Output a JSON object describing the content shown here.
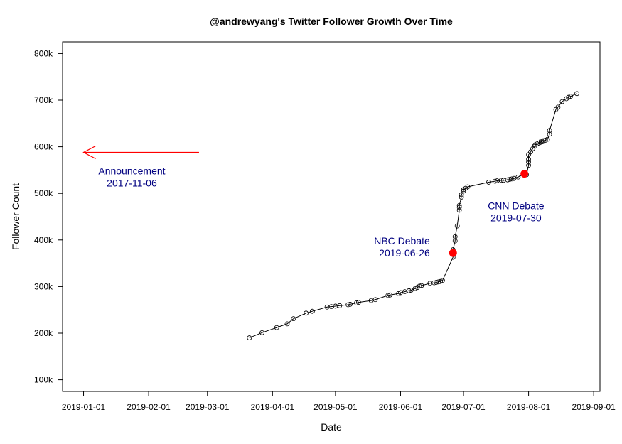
{
  "chart_data": {
    "type": "line",
    "title": "@andrewyang's Twitter Follower Growth Over Time",
    "xlabel": "Date",
    "ylabel": "Follower Count",
    "xlim": [
      "2018-12-22",
      "2019-09-04"
    ],
    "ylim": [
      75000,
      825000
    ],
    "x_ticks": [
      "2019-01-01",
      "2019-02-01",
      "2019-03-01",
      "2019-04-01",
      "2019-05-01",
      "2019-06-01",
      "2019-07-01",
      "2019-08-01",
      "2019-09-01"
    ],
    "y_ticks": [
      100000,
      200000,
      300000,
      400000,
      500000,
      600000,
      700000,
      800000
    ],
    "y_tick_labels": [
      "100k",
      "200k",
      "300k",
      "400k",
      "500k",
      "600k",
      "700k",
      "800k"
    ],
    "grid": false,
    "series": [
      {
        "marker": "open-circle",
        "color": "#000000",
        "points": [
          {
            "x": "2019-03-21",
            "y": 190000
          },
          {
            "x": "2019-03-27",
            "y": 201000
          },
          {
            "x": "2019-04-03",
            "y": 212000
          },
          {
            "x": "2019-04-08",
            "y": 220000
          },
          {
            "x": "2019-04-11",
            "y": 231000
          },
          {
            "x": "2019-04-17",
            "y": 243000
          },
          {
            "x": "2019-04-20",
            "y": 247000
          },
          {
            "x": "2019-04-27",
            "y": 256000
          },
          {
            "x": "2019-04-29",
            "y": 257000
          },
          {
            "x": "2019-05-01",
            "y": 258000
          },
          {
            "x": "2019-05-03",
            "y": 259000
          },
          {
            "x": "2019-05-07",
            "y": 261000
          },
          {
            "x": "2019-05-08",
            "y": 262000
          },
          {
            "x": "2019-05-11",
            "y": 265000
          },
          {
            "x": "2019-05-12",
            "y": 266000
          },
          {
            "x": "2019-05-18",
            "y": 270000
          },
          {
            "x": "2019-05-20",
            "y": 272000
          },
          {
            "x": "2019-05-26",
            "y": 281000
          },
          {
            "x": "2019-05-27",
            "y": 282000
          },
          {
            "x": "2019-05-31",
            "y": 285000
          },
          {
            "x": "2019-06-01",
            "y": 287000
          },
          {
            "x": "2019-06-03",
            "y": 289000
          },
          {
            "x": "2019-06-05",
            "y": 291000
          },
          {
            "x": "2019-06-06",
            "y": 292000
          },
          {
            "x": "2019-06-08",
            "y": 296000
          },
          {
            "x": "2019-06-09",
            "y": 298000
          },
          {
            "x": "2019-06-10",
            "y": 301000
          },
          {
            "x": "2019-06-11",
            "y": 302000
          },
          {
            "x": "2019-06-15",
            "y": 307000
          },
          {
            "x": "2019-06-17",
            "y": 308000
          },
          {
            "x": "2019-06-18",
            "y": 309000
          },
          {
            "x": "2019-06-19",
            "y": 310000
          },
          {
            "x": "2019-06-20",
            "y": 311000
          },
          {
            "x": "2019-06-21",
            "y": 313000
          },
          {
            "x": "2019-06-26",
            "y": 363000
          },
          {
            "x": "2019-06-26",
            "y": 372000
          },
          {
            "x": "2019-06-26",
            "y": 379000
          },
          {
            "x": "2019-06-27",
            "y": 398000
          },
          {
            "x": "2019-06-27",
            "y": 407000
          },
          {
            "x": "2019-06-28",
            "y": 430000
          },
          {
            "x": "2019-06-29",
            "y": 464000
          },
          {
            "x": "2019-06-29",
            "y": 470000
          },
          {
            "x": "2019-06-29",
            "y": 474000
          },
          {
            "x": "2019-06-30",
            "y": 492000
          },
          {
            "x": "2019-06-30",
            "y": 497000
          },
          {
            "x": "2019-07-01",
            "y": 505000
          },
          {
            "x": "2019-07-01",
            "y": 508000
          },
          {
            "x": "2019-07-02",
            "y": 511000
          },
          {
            "x": "2019-07-03",
            "y": 514000
          },
          {
            "x": "2019-07-13",
            "y": 524000
          },
          {
            "x": "2019-07-16",
            "y": 526000
          },
          {
            "x": "2019-07-17",
            "y": 527000
          },
          {
            "x": "2019-07-19",
            "y": 528000
          },
          {
            "x": "2019-07-20",
            "y": 528000
          },
          {
            "x": "2019-07-22",
            "y": 529000
          },
          {
            "x": "2019-07-23",
            "y": 530000
          },
          {
            "x": "2019-07-24",
            "y": 531000
          },
          {
            "x": "2019-07-25",
            "y": 532000
          },
          {
            "x": "2019-07-27",
            "y": 535000
          },
          {
            "x": "2019-07-30",
            "y": 542000
          },
          {
            "x": "2019-07-31",
            "y": 540000
          },
          {
            "x": "2019-08-01",
            "y": 560000
          },
          {
            "x": "2019-08-01",
            "y": 567000
          },
          {
            "x": "2019-08-01",
            "y": 573000
          },
          {
            "x": "2019-08-01",
            "y": 583000
          },
          {
            "x": "2019-08-02",
            "y": 589000
          },
          {
            "x": "2019-08-03",
            "y": 596000
          },
          {
            "x": "2019-08-04",
            "y": 601000
          },
          {
            "x": "2019-08-04",
            "y": 604000
          },
          {
            "x": "2019-08-05",
            "y": 606000
          },
          {
            "x": "2019-08-06",
            "y": 608000
          },
          {
            "x": "2019-08-07",
            "y": 610000
          },
          {
            "x": "2019-08-07",
            "y": 612000
          },
          {
            "x": "2019-08-08",
            "y": 613000
          },
          {
            "x": "2019-08-09",
            "y": 614000
          },
          {
            "x": "2019-08-10",
            "y": 616000
          },
          {
            "x": "2019-08-11",
            "y": 627000
          },
          {
            "x": "2019-08-11",
            "y": 635000
          },
          {
            "x": "2019-08-14",
            "y": 680000
          },
          {
            "x": "2019-08-15",
            "y": 685000
          },
          {
            "x": "2019-08-17",
            "y": 697000
          },
          {
            "x": "2019-08-19",
            "y": 703000
          },
          {
            "x": "2019-08-20",
            "y": 706000
          },
          {
            "x": "2019-08-21",
            "y": 708000
          },
          {
            "x": "2019-08-24",
            "y": 714000
          }
        ]
      }
    ],
    "highlights": [
      {
        "x": "2019-06-26",
        "y": 372000,
        "color": "#ff0000"
      },
      {
        "x": "2019-07-30",
        "y": 542000,
        "color": "#ff0000"
      }
    ],
    "annotations": [
      {
        "lines": [
          "NBC Debate",
          "2019-06-26"
        ],
        "x": "2019-06-15",
        "y": 365000,
        "anchor": "end",
        "color": "#000080"
      },
      {
        "lines": [
          "CNN Debate",
          "2019-07-30"
        ],
        "x": "2019-07-26",
        "y": 440000,
        "anchor": "middle",
        "color": "#000080"
      },
      {
        "lines": [
          "Announcement",
          "2017-11-06"
        ],
        "x": "2019-01-24",
        "y": 515000,
        "anchor": "middle",
        "color": "#000080"
      }
    ],
    "arrow": {
      "from": {
        "x": "2019-02-25",
        "y": 588000
      },
      "to": {
        "x": "2019-01-01",
        "y": 588000
      },
      "color": "#ff0000"
    }
  }
}
